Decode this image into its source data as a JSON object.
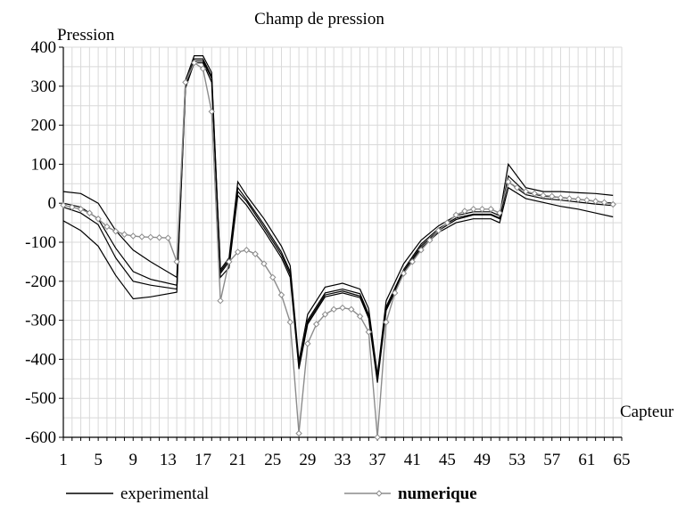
{
  "chart_data": {
    "type": "line",
    "title": "Champ de pression",
    "ylabel": "Pression",
    "xlabel": "Capteur",
    "xlim": [
      1,
      65
    ],
    "ylim": [
      -600,
      400
    ],
    "xticks": [
      1,
      5,
      9,
      13,
      17,
      21,
      25,
      29,
      33,
      37,
      41,
      45,
      49,
      53,
      57,
      61,
      65
    ],
    "yticks": [
      400,
      300,
      200,
      100,
      0,
      -100,
      -200,
      -300,
      -400,
      -500,
      -600
    ],
    "grid": true,
    "legend": {
      "position": "bottom",
      "entries": [
        "experimental",
        "numerique"
      ]
    },
    "colors": {
      "experimental": "#000000",
      "numerique": "#8c8c8c",
      "grid": "#d9d9d9"
    },
    "series": [
      {
        "name": "experimental",
        "style": "line",
        "lines": [
          {
            "x": [
              1,
              3,
              5,
              7,
              9,
              11,
              14,
              15,
              16,
              17,
              18,
              19,
              20,
              21,
              22,
              24,
              26,
              27,
              28,
              29,
              31,
              33,
              35,
              36,
              37,
              38,
              40,
              42,
              44,
              46,
              48,
              50,
              51,
              52,
              54,
              56,
              58,
              60,
              62,
              64
            ],
            "y": [
              30,
              25,
              0,
              -70,
              -120,
              -150,
              -190,
              315,
              378,
              378,
              335,
              -170,
              -140,
              55,
              20,
              -40,
              -110,
              -160,
              -405,
              -285,
              -215,
              -205,
              -220,
              -270,
              -440,
              -250,
              -155,
              -95,
              -58,
              -32,
              -22,
              -22,
              -32,
              100,
              40,
              30,
              30,
              27,
              25,
              20
            ]
          },
          {
            "x": [
              1,
              3,
              5,
              7,
              9,
              11,
              14,
              15,
              16,
              17,
              18,
              19,
              20,
              21,
              22,
              24,
              26,
              27,
              28,
              29,
              31,
              33,
              35,
              36,
              37,
              38,
              40,
              42,
              44,
              46,
              48,
              50,
              51,
              52,
              54,
              56,
              58,
              60,
              62,
              64
            ],
            "y": [
              0,
              -10,
              -40,
              -115,
              -175,
              -195,
              -210,
              305,
              370,
              370,
              325,
              -175,
              -145,
              40,
              10,
              -55,
              -125,
              -175,
              -415,
              -300,
              -230,
              -220,
              -232,
              -285,
              -450,
              -265,
              -170,
              -105,
              -65,
              -38,
              -28,
              -28,
              -38,
              70,
              28,
              18,
              15,
              10,
              5,
              0
            ]
          },
          {
            "x": [
              1,
              3,
              5,
              7,
              9,
              11,
              14,
              15,
              16,
              17,
              18,
              19,
              20,
              21,
              22,
              24,
              26,
              27,
              28,
              29,
              31,
              33,
              35,
              36,
              37,
              38,
              40,
              42,
              44,
              46,
              48,
              50,
              51,
              52,
              54,
              56,
              58,
              60,
              62,
              64
            ],
            "y": [
              -10,
              -25,
              -55,
              -140,
              -200,
              -210,
              -220,
              300,
              365,
              365,
              320,
              -180,
              -150,
              30,
              5,
              -62,
              -132,
              -182,
              -420,
              -305,
              -235,
              -225,
              -238,
              -290,
              -455,
              -270,
              -175,
              -110,
              -70,
              -42,
              -30,
              -30,
              -40,
              55,
              22,
              12,
              8,
              3,
              -2,
              -6
            ]
          },
          {
            "x": [
              1,
              3,
              5,
              7,
              9,
              11,
              14,
              15,
              16,
              17,
              18,
              19,
              20,
              21,
              22,
              24,
              26,
              27,
              28,
              29,
              31,
              33,
              35,
              36,
              37,
              38,
              40,
              42,
              44,
              46,
              48,
              50,
              51,
              52,
              54,
              56,
              58,
              60,
              62,
              64
            ],
            "y": [
              -45,
              -70,
              -110,
              -185,
              -245,
              -240,
              -228,
              295,
              360,
              360,
              310,
              -190,
              -165,
              20,
              -5,
              -70,
              -140,
              -190,
              -425,
              -310,
              -240,
              -230,
              -242,
              -295,
              -460,
              -275,
              -180,
              -115,
              -75,
              -50,
              -40,
              -40,
              -50,
              40,
              12,
              2,
              -8,
              -15,
              -25,
              -35
            ]
          }
        ]
      },
      {
        "name": "numerique",
        "style": "line-diamond",
        "x": [
          1,
          2,
          3,
          4,
          5,
          6,
          7,
          8,
          9,
          10,
          11,
          12,
          13,
          14,
          15,
          16,
          17,
          18,
          19,
          20,
          21,
          22,
          23,
          24,
          25,
          26,
          27,
          28,
          29,
          30,
          31,
          32,
          33,
          34,
          35,
          36,
          37,
          38,
          39,
          40,
          41,
          42,
          43,
          44,
          45,
          46,
          47,
          48,
          49,
          50,
          51,
          52,
          53,
          54,
          55,
          56,
          57,
          58,
          59,
          60,
          61,
          62,
          63,
          64
        ],
        "y": [
          -5,
          -10,
          -15,
          -25,
          -40,
          -60,
          -72,
          -80,
          -84,
          -86,
          -87,
          -88,
          -89,
          -150,
          310,
          360,
          345,
          235,
          -250,
          -150,
          -125,
          -120,
          -130,
          -155,
          -190,
          -235,
          -305,
          -590,
          -360,
          -310,
          -285,
          -272,
          -268,
          -272,
          -290,
          -330,
          -600,
          -305,
          -230,
          -180,
          -150,
          -120,
          -95,
          -70,
          -50,
          -30,
          -20,
          -15,
          -15,
          -15,
          -25,
          55,
          40,
          30,
          25,
          20,
          18,
          14,
          12,
          10,
          8,
          5,
          2,
          -3
        ]
      }
    ]
  }
}
